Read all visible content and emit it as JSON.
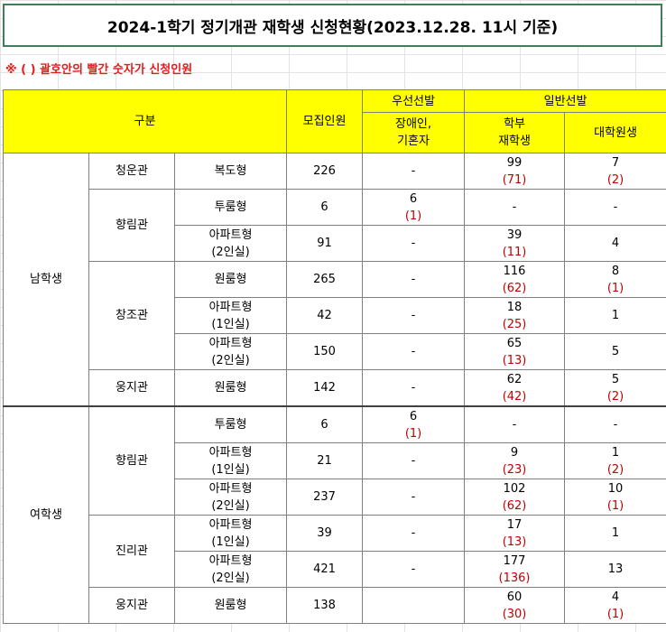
{
  "title": "2024-1학기 정기개관 재학생 신청현황(2023.12.28. 11시 기준)",
  "note": "※ ( ) 괄호안의 빨간 숫자가 신청인원",
  "headers": {
    "category": "구분",
    "capacity": "모집인원",
    "priority": "우선선발",
    "general": "일반선발",
    "disabled_line1": "장애인,",
    "disabled_line2": "기혼자",
    "undergrad_line1": "학부",
    "undergrad_line2": "재학생",
    "grad": "대학원생"
  },
  "groups": {
    "male": "남학생",
    "female": "여학생"
  },
  "rows": [
    {
      "dorm": "청운관",
      "type1": "복도형",
      "type2": "",
      "cap": "226",
      "pri": "-",
      "pri_app": "",
      "ug": "99",
      "ug_app": "(71)",
      "gr": "7",
      "gr_app": "(2)"
    },
    {
      "dorm": "향림관",
      "type1": "투룸형",
      "type2": "",
      "cap": "6",
      "pri": "6",
      "pri_app": "(1)",
      "ug": "-",
      "ug_app": "",
      "gr": "-",
      "gr_app": ""
    },
    {
      "dorm": "",
      "type1": "아파트형",
      "type2": "(2인실)",
      "cap": "91",
      "pri": "-",
      "pri_app": "",
      "ug": "39",
      "ug_app": "(11)",
      "gr": "4",
      "gr_app": ""
    },
    {
      "dorm": "창조관",
      "type1": "원룸형",
      "type2": "",
      "cap": "265",
      "pri": "-",
      "pri_app": "",
      "ug": "116",
      "ug_app": "(62)",
      "gr": "8",
      "gr_app": "(1)"
    },
    {
      "dorm": "",
      "type1": "아파트형",
      "type2": "(1인실)",
      "cap": "42",
      "pri": "-",
      "pri_app": "",
      "ug": "18",
      "ug_app": "(25)",
      "gr": "1",
      "gr_app": ""
    },
    {
      "dorm": "",
      "type1": "아파트형",
      "type2": "(2인실)",
      "cap": "150",
      "pri": "-",
      "pri_app": "",
      "ug": "65",
      "ug_app": "(13)",
      "gr": "5",
      "gr_app": ""
    },
    {
      "dorm": "웅지관",
      "type1": "원룸형",
      "type2": "",
      "cap": "142",
      "pri": "-",
      "pri_app": "",
      "ug": "62",
      "ug_app": "(42)",
      "gr": "5",
      "gr_app": "(2)"
    },
    {
      "dorm": "향림관",
      "type1": "투룸형",
      "type2": "",
      "cap": "6",
      "pri": "6",
      "pri_app": "(1)",
      "ug": "-",
      "ug_app": "",
      "gr": "-",
      "gr_app": ""
    },
    {
      "dorm": "",
      "type1": "아파트형",
      "type2": "(1인실)",
      "cap": "21",
      "pri": "-",
      "pri_app": "",
      "ug": "9",
      "ug_app": "(23)",
      "gr": "1",
      "gr_app": "(2)"
    },
    {
      "dorm": "",
      "type1": "아파트형",
      "type2": "(2인실)",
      "cap": "237",
      "pri": "-",
      "pri_app": "",
      "ug": "102",
      "ug_app": "(62)",
      "gr": "10",
      "gr_app": "(1)"
    },
    {
      "dorm": "진리관",
      "type1": "아파트형",
      "type2": "(1인실)",
      "cap": "39",
      "pri": "-",
      "pri_app": "",
      "ug": "17",
      "ug_app": "(13)",
      "gr": "1",
      "gr_app": ""
    },
    {
      "dorm": "",
      "type1": "아파트형",
      "type2": "(2인실)",
      "cap": "421",
      "pri": "-",
      "pri_app": "",
      "ug": "177",
      "ug_app": "(136)",
      "gr": "13",
      "gr_app": ""
    },
    {
      "dorm": "웅지관",
      "type1": "원룸형",
      "type2": "",
      "cap": "138",
      "pri": "",
      "pri_app": "",
      "ug": "60",
      "ug_app": "(30)",
      "gr": "4",
      "gr_app": "(1)"
    }
  ]
}
